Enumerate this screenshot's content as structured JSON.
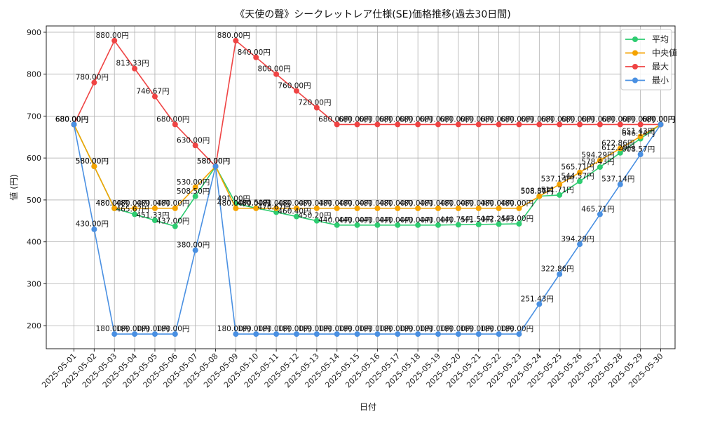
{
  "chart_data": {
    "type": "line",
    "title": "《天使の聲》シークレットレア仕様(SE)価格推移(過去30日間)",
    "xlabel": "日付",
    "ylabel": "値 (円)",
    "ylim": [
      145,
      915
    ],
    "yticks": [
      200,
      300,
      400,
      500,
      600,
      700,
      800,
      900
    ],
    "grid": true,
    "legend_position": "top-right",
    "value_suffix": "円",
    "categories": [
      "2025-05-01",
      "2025-05-02",
      "2025-05-03",
      "2025-05-04",
      "2025-05-05",
      "2025-05-06",
      "2025-05-07",
      "2025-05-08",
      "2025-05-09",
      "2025-05-10",
      "2025-05-11",
      "2025-05-12",
      "2025-05-13",
      "2025-05-14",
      "2025-05-15",
      "2025-05-16",
      "2025-05-17",
      "2025-05-18",
      "2025-05-19",
      "2025-05-20",
      "2025-05-21",
      "2025-05-22",
      "2025-05-23",
      "2025-05-24",
      "2025-05-25",
      "2025-05-26",
      "2025-05-27",
      "2025-05-28",
      "2025-05-29",
      "2025-05-30"
    ],
    "series": [
      {
        "name": "平均",
        "color": "#2ecc71",
        "values": [
          680,
          580,
          480,
          465.67,
          451.33,
          437,
          508.5,
          580,
          491,
          480.5,
          470.67,
          460.4,
          450.2,
          440,
          440,
          440,
          440,
          440,
          440,
          440.75,
          441.5,
          442.25,
          443,
          508.86,
          511.71,
          544.57,
          578.43,
          612.29,
          646.14,
          680
        ]
      },
      {
        "name": "中央値",
        "color": "#f5a300",
        "values": [
          680,
          580,
          480,
          480,
          480,
          480,
          530,
          580,
          480,
          480,
          480,
          480,
          480,
          480,
          480,
          480,
          480,
          480,
          480,
          480,
          480,
          480,
          480,
          508.57,
          537.14,
          565.71,
          594.29,
          622.86,
          651.43,
          680
        ]
      },
      {
        "name": "最大",
        "color": "#ef4444",
        "values": [
          680,
          780,
          880,
          813.33,
          746.67,
          680,
          630,
          580,
          880,
          840,
          800,
          760,
          720,
          680,
          680,
          680,
          680,
          680,
          680,
          680,
          680,
          680,
          680,
          680,
          680,
          680,
          680,
          680,
          680,
          680
        ]
      },
      {
        "name": "最小",
        "color": "#4a90e2",
        "values": [
          680,
          430,
          180,
          180,
          180,
          180,
          380,
          580,
          180,
          180,
          180,
          180,
          180,
          180,
          180,
          180,
          180,
          180,
          180,
          180,
          180,
          180,
          180,
          251.43,
          322.86,
          394.29,
          465.71,
          537.14,
          608.57,
          680
        ]
      }
    ]
  }
}
